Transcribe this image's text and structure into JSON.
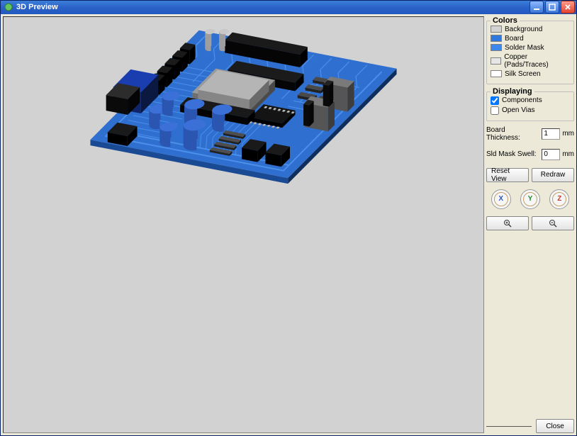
{
  "window": {
    "title": "3D Preview"
  },
  "colors": {
    "legend": "Colors",
    "items": [
      {
        "label": "Background",
        "swatch": "#d2d2d2"
      },
      {
        "label": "Board",
        "swatch": "#2f78dd"
      },
      {
        "label": "Solder Mask",
        "swatch": "#3d88ee"
      },
      {
        "label": "Copper (Pads/Traces)",
        "swatch": "#e6e6e6"
      },
      {
        "label": "Silk Screen",
        "swatch": "#ffffff"
      }
    ]
  },
  "displaying": {
    "legend": "Displaying",
    "components": {
      "label": "Components",
      "checked": true
    },
    "open_vias": {
      "label": "Open Vias",
      "checked": false
    }
  },
  "board_thickness": {
    "label": "Board Thickness:",
    "value": "1",
    "unit": "mm"
  },
  "sld_mask_swell": {
    "label": "Sld Mask Swell:",
    "value": "0",
    "unit": "mm"
  },
  "buttons": {
    "reset_view": "Reset View",
    "redraw": "Redraw",
    "close": "Close"
  },
  "axes": {
    "x": "X",
    "y": "Y",
    "z": "Z",
    "x_color": "#2a56c8",
    "y_color": "#1a8a2a",
    "z_color": "#c83a2a"
  },
  "viewport": {
    "background": "#d2d2d2",
    "board_top": "#2f6fd0",
    "board_side": "#1a4a94",
    "board_shadow": "#0e2f5e",
    "trace_color": "#4a90e8",
    "comp_dark": "#1a1a1a",
    "comp_dark_side": "#050505",
    "comp_grey": "#6f6f6f",
    "comp_grey_top": "#9a9a9a",
    "comp_light": "#b8b8b8",
    "cap_blue": "#2a55b0",
    "cap_blue_top": "#3a70d8",
    "heatsink": "#7a7a7a",
    "heatsink_side": "#555555",
    "led_glass": "#c8c8c8"
  }
}
